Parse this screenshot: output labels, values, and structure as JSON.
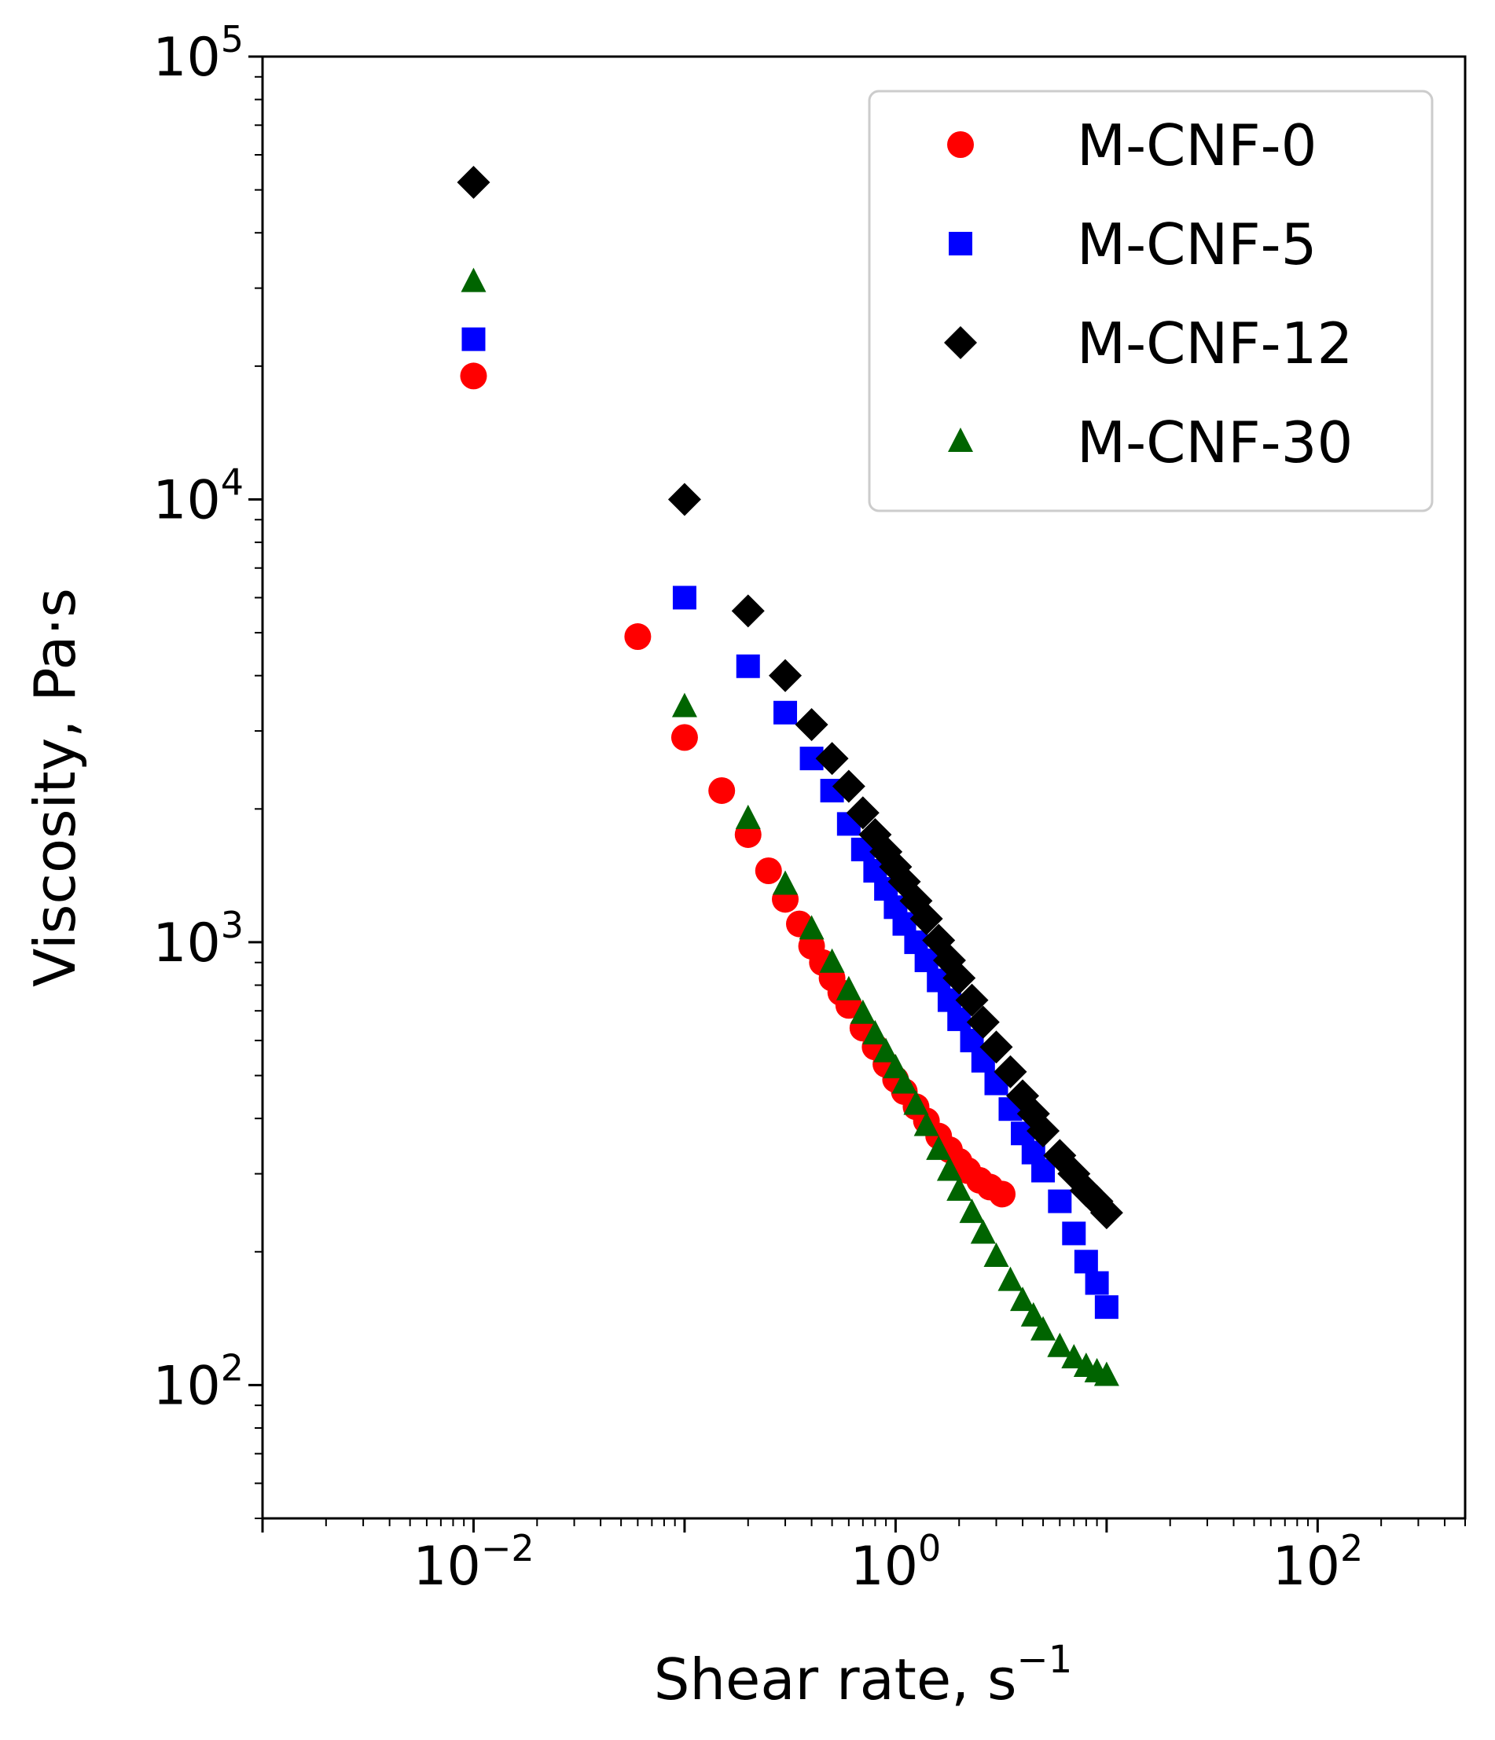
{
  "chart_data": {
    "type": "scatter",
    "x_scale": "log",
    "y_scale": "log",
    "xlabel": "Shear rate, s",
    "xlabel_superscript": "−1",
    "ylabel": "Viscosity, Pa·s",
    "xlim": [
      0.001,
      500
    ],
    "ylim": [
      50,
      100000
    ],
    "x_ticks": [
      {
        "base": "10",
        "exp": "−2",
        "value": 0.01
      },
      {
        "base": "10",
        "exp": "0",
        "value": 1
      },
      {
        "base": "10",
        "exp": "2",
        "value": 100
      }
    ],
    "y_ticks": [
      {
        "base": "10",
        "exp": "2",
        "value": 100
      },
      {
        "base": "10",
        "exp": "3",
        "value": 1000
      },
      {
        "base": "10",
        "exp": "4",
        "value": 10000
      },
      {
        "base": "10",
        "exp": "5",
        "value": 100000
      }
    ],
    "legend_position": "top-right",
    "series": [
      {
        "name": "M-CNF-0",
        "marker": "circle",
        "color": "#ff0000",
        "x": [
          0.01,
          0.06,
          0.1,
          0.15,
          0.2,
          0.25,
          0.3,
          0.35,
          0.4,
          0.45,
          0.5,
          0.55,
          0.6,
          0.7,
          0.8,
          0.9,
          1.0,
          1.1,
          1.25,
          1.4,
          1.6,
          1.8,
          2.0,
          2.2,
          2.5,
          2.8,
          3.2
        ],
        "y": [
          19000,
          4900,
          2900,
          2200,
          1750,
          1450,
          1250,
          1100,
          980,
          900,
          830,
          770,
          720,
          640,
          580,
          530,
          490,
          460,
          425,
          395,
          365,
          340,
          320,
          305,
          290,
          280,
          270
        ]
      },
      {
        "name": "M-CNF-5",
        "marker": "square",
        "color": "#0000ff",
        "x": [
          0.01,
          0.1,
          0.2,
          0.3,
          0.4,
          0.5,
          0.6,
          0.7,
          0.8,
          0.9,
          1.0,
          1.1,
          1.25,
          1.4,
          1.6,
          1.8,
          2.0,
          2.3,
          2.6,
          3.0,
          3.5,
          4.0,
          4.5,
          5.0,
          6.0,
          7.0,
          8.0,
          9.0,
          10.0
        ],
        "y": [
          23000,
          6000,
          4200,
          3300,
          2600,
          2200,
          1850,
          1620,
          1450,
          1320,
          1200,
          1100,
          1000,
          910,
          820,
          740,
          670,
          600,
          540,
          480,
          420,
          370,
          335,
          305,
          260,
          220,
          190,
          170,
          150
        ]
      },
      {
        "name": "M-CNF-12",
        "marker": "diamond",
        "color": "#000000",
        "x": [
          0.01,
          0.1,
          0.2,
          0.3,
          0.4,
          0.5,
          0.6,
          0.7,
          0.8,
          0.9,
          1.0,
          1.1,
          1.25,
          1.4,
          1.6,
          1.8,
          2.0,
          2.3,
          2.6,
          3.0,
          3.5,
          4.0,
          4.5,
          5.0,
          6.0,
          7.0,
          8.0,
          9.0,
          10.0
        ],
        "y": [
          52000,
          10000,
          5600,
          4000,
          3100,
          2600,
          2250,
          1960,
          1750,
          1600,
          1480,
          1370,
          1240,
          1130,
          1010,
          910,
          830,
          740,
          660,
          580,
          510,
          450,
          410,
          375,
          330,
          300,
          275,
          260,
          245
        ]
      },
      {
        "name": "M-CNF-30",
        "marker": "triangle",
        "color": "#006400",
        "x": [
          0.01,
          0.1,
          0.2,
          0.3,
          0.4,
          0.5,
          0.6,
          0.7,
          0.8,
          0.9,
          1.0,
          1.1,
          1.25,
          1.4,
          1.6,
          1.8,
          2.0,
          2.3,
          2.6,
          3.0,
          3.5,
          4.0,
          4.5,
          5.0,
          6.0,
          7.0,
          8.0,
          9.0,
          10.0
        ],
        "y": [
          31000,
          3400,
          1900,
          1350,
          1070,
          900,
          780,
          690,
          620,
          565,
          520,
          480,
          430,
          385,
          340,
          305,
          275,
          245,
          220,
          195,
          172,
          155,
          143,
          133,
          122,
          115,
          110,
          107,
          105
        ]
      }
    ]
  }
}
